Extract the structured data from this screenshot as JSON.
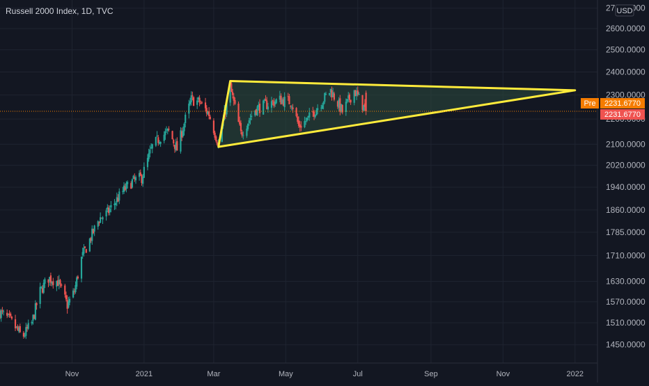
{
  "header": {
    "title": "Russell 2000 Index, 1D, TVC",
    "currency": "USD"
  },
  "price_axis": {
    "labels": [
      "2700.0000",
      "2600.0000",
      "2500.0000",
      "2400.0000",
      "2300.0000",
      "2200.0000",
      "2100.0000",
      "2020.0000",
      "1940.0000",
      "1860.0000",
      "1785.0000",
      "1710.0000",
      "1630.0000",
      "1570.0000",
      "1510.0000",
      "1450.0000"
    ],
    "pre_tag": "Pre",
    "pre_value": "2231.6770",
    "last_value": "2231.6770"
  },
  "time_axis": {
    "labels": [
      "Nov",
      "2021",
      "Mar",
      "May",
      "Jul",
      "Sep",
      "Nov",
      "2022"
    ]
  },
  "colors": {
    "background": "#131722",
    "grid": "#1f2430",
    "up": "#26a69a",
    "down": "#ef5350",
    "triangle": "#ffeb3b",
    "triangle_fill": "#2c4b3e",
    "pre_badge": "#f57c00",
    "last_badge": "#ef5350",
    "text": "#b2b5be"
  },
  "chart_data": {
    "type": "candlestick",
    "title": "Russell 2000 Index, 1D, TVC",
    "y_scale": "log",
    "ylim": [
      1420,
      2720
    ],
    "x_range": [
      "2020-09-01",
      "2022-01-20"
    ],
    "grid": true,
    "close_path": [
      [
        "2020-09-01",
        1540
      ],
      [
        "2020-09-10",
        1515
      ],
      [
        "2020-09-20",
        1470
      ],
      [
        "2020-09-28",
        1510
      ],
      [
        "2020-10-05",
        1600
      ],
      [
        "2020-10-12",
        1640
      ],
      [
        "2020-10-20",
        1630
      ],
      [
        "2020-10-28",
        1560
      ],
      [
        "2020-11-03",
        1600
      ],
      [
        "2020-11-09",
        1700
      ],
      [
        "2020-11-16",
        1760
      ],
      [
        "2020-11-24",
        1830
      ],
      [
        "2020-12-01",
        1850
      ],
      [
        "2020-12-08",
        1890
      ],
      [
        "2020-12-15",
        1930
      ],
      [
        "2020-12-22",
        1960
      ],
      [
        "2020-12-30",
        1975
      ],
      [
        "2021-01-08",
        2090
      ],
      [
        "2021-01-15",
        2130
      ],
      [
        "2021-01-22",
        2150
      ],
      [
        "2021-01-29",
        2080
      ],
      [
        "2021-02-05",
        2200
      ],
      [
        "2021-02-10",
        2280
      ],
      [
        "2021-02-17",
        2270
      ],
      [
        "2021-02-25",
        2220
      ],
      [
        "2021-03-05",
        2100
      ],
      [
        "2021-03-15",
        2330
      ],
      [
        "2021-03-24",
        2140
      ],
      [
        "2021-04-05",
        2240
      ],
      [
        "2021-04-15",
        2260
      ],
      [
        "2021-04-26",
        2280
      ],
      [
        "2021-05-06",
        2270
      ],
      [
        "2021-05-12",
        2170
      ],
      [
        "2021-05-20",
        2200
      ],
      [
        "2021-05-28",
        2250
      ],
      [
        "2021-06-08",
        2320
      ],
      [
        "2021-06-18",
        2230
      ],
      [
        "2021-06-28",
        2320
      ],
      [
        "2021-07-08",
        2231.677
      ]
    ],
    "annotations": {
      "triangle": [
        {
          "date": "2021-03-05",
          "price": 2090
        },
        {
          "date": "2021-03-15",
          "price": 2360
        },
        {
          "date": "2022-01-01",
          "price": 2320
        }
      ]
    },
    "last_price": 2231.677
  }
}
